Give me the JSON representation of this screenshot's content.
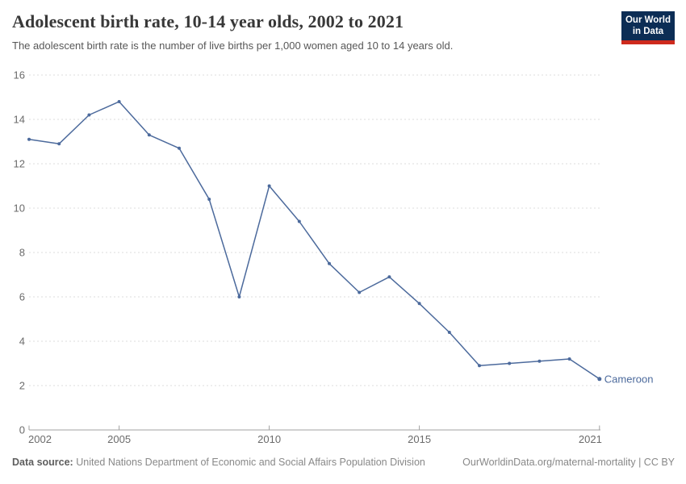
{
  "header": {
    "title": "Adolescent birth rate, 10-14 year olds, 2002 to 2021",
    "subtitle": "The adolescent birth rate is the number of live births per 1,000 women aged 10 to 14 years old.",
    "logo": {
      "line1": "Our World",
      "line2": "in Data"
    }
  },
  "colors": {
    "logo_bg": "#0C2D55",
    "logo_bar": "#CE2A1D",
    "series_blue": "#4C6A9C",
    "gridline": "#DDDDDD",
    "axis_line": "#A1A1A1",
    "axis_text": "#6B6B6B"
  },
  "chart_data": {
    "type": "line",
    "title": "Adolescent birth rate, 10-14 year olds, 2002 to 2021",
    "xlabel": "",
    "ylabel": "",
    "xlim": [
      2002,
      2021
    ],
    "ylim": [
      0,
      16
    ],
    "yticks": [
      0,
      2,
      4,
      6,
      8,
      10,
      12,
      14,
      16
    ],
    "xticks": [
      2002,
      2005,
      2010,
      2015,
      2021
    ],
    "grid": "horizontal-dashed",
    "legend_position": "end-of-line-label",
    "series": [
      {
        "name": "Cameroon",
        "color": "#4C6A9C",
        "x": [
          2002,
          2003,
          2004,
          2005,
          2006,
          2007,
          2008,
          2009,
          2010,
          2011,
          2012,
          2013,
          2014,
          2015,
          2016,
          2017,
          2018,
          2019,
          2020,
          2021
        ],
        "values": [
          13.1,
          12.9,
          14.2,
          14.8,
          13.3,
          12.7,
          10.4,
          6.0,
          11.0,
          9.4,
          7.5,
          6.2,
          6.9,
          5.7,
          4.4,
          2.9,
          3.0,
          3.1,
          3.2,
          2.3
        ]
      }
    ]
  },
  "footer": {
    "source_label": "Data source:",
    "source_text": "United Nations Department of Economic and Social Affairs Population Division",
    "rights": "OurWorldinData.org/maternal-mortality | CC BY"
  }
}
